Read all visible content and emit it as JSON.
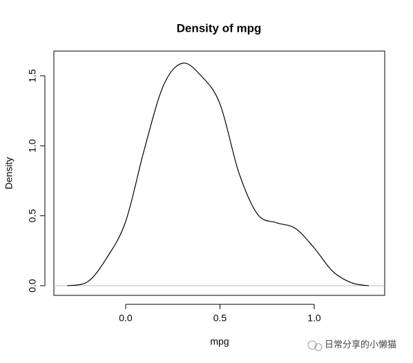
{
  "chart_data": {
    "type": "line",
    "title": "Density of mpg",
    "xlabel": "mpg",
    "ylabel": "Density",
    "x": [
      -0.31,
      -0.2,
      -0.1,
      0.0,
      0.1,
      0.2,
      0.3,
      0.4,
      0.5,
      0.6,
      0.7,
      0.8,
      0.9,
      1.0,
      1.1,
      1.2,
      1.29
    ],
    "series": [
      {
        "color": "#000000",
        "values": [
          0.0,
          0.03,
          0.2,
          0.46,
          0.98,
          1.43,
          1.59,
          1.5,
          1.3,
          0.81,
          0.51,
          0.45,
          0.41,
          0.27,
          0.1,
          0.02,
          0.0
        ]
      }
    ],
    "xlim": [
      -0.381,
      1.374
    ],
    "ylim": [
      -0.069,
      1.677
    ],
    "xticks": [
      {
        "value": 0,
        "label": "0.0"
      },
      {
        "value": 0.5,
        "label": "0.5"
      },
      {
        "value": 1,
        "label": "1.0"
      }
    ],
    "yticks": [
      {
        "value": 0,
        "label": "0.0"
      },
      {
        "value": 0.5,
        "label": "0.5"
      },
      {
        "value": 1,
        "label": "1.0"
      },
      {
        "value": 1.5,
        "label": "1.5"
      }
    ]
  },
  "watermark": "日常分享的小懒猫"
}
